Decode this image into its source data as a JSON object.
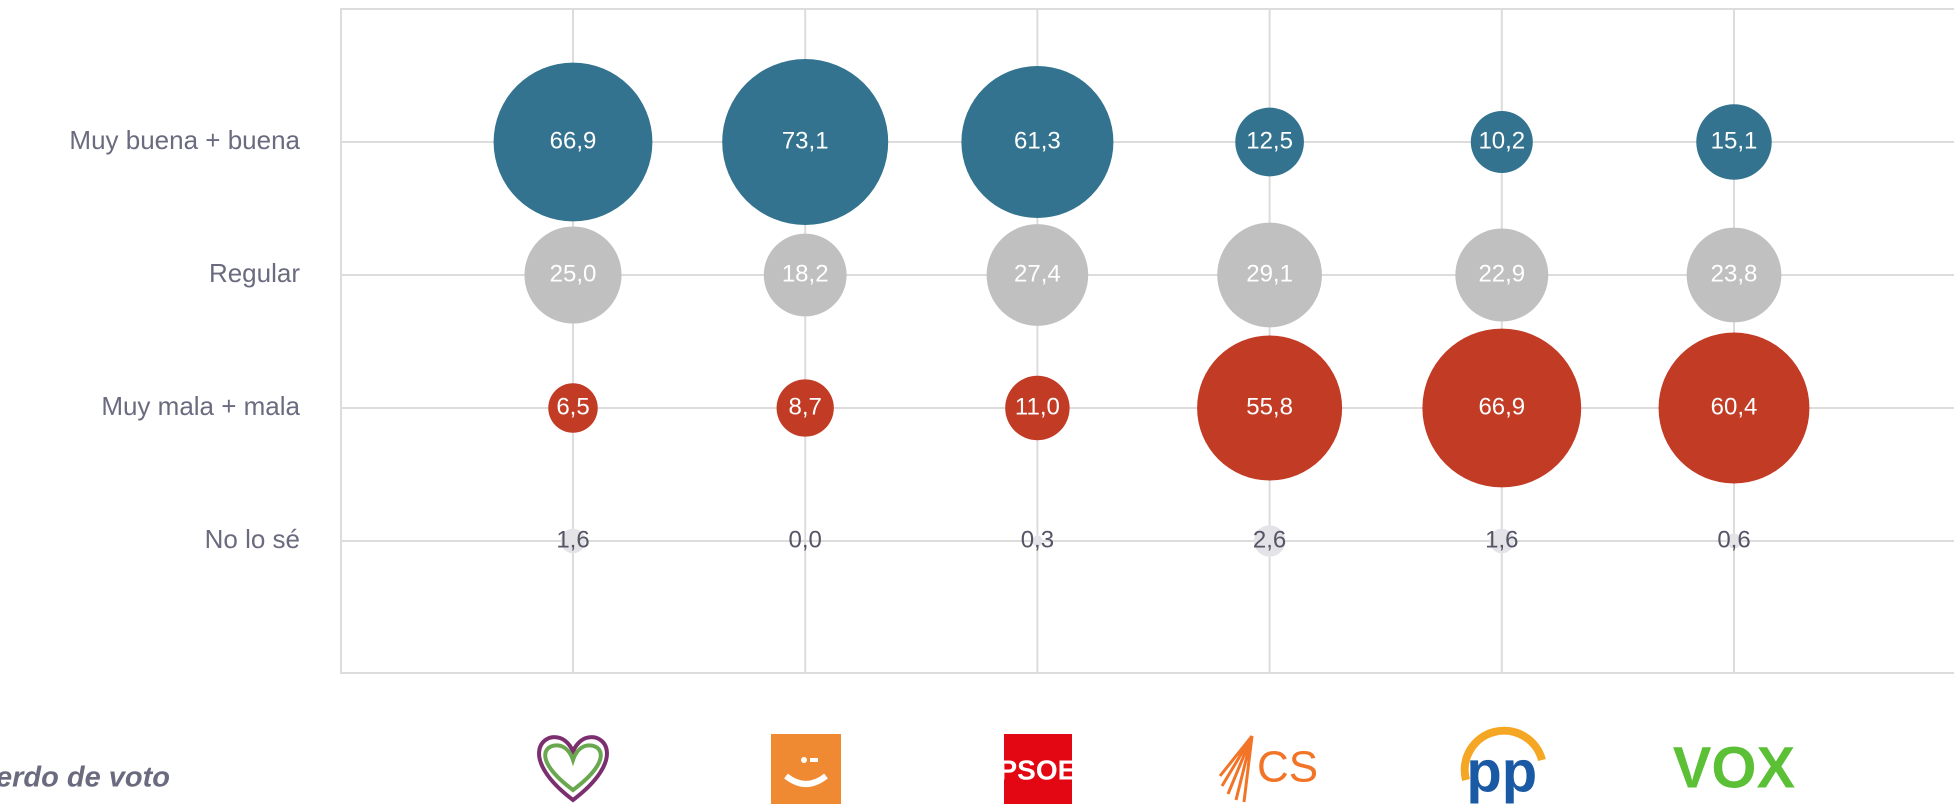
{
  "chart_data": {
    "type": "bubble",
    "xlabel": "erdo de voto",
    "categories": [
      null,
      null,
      "PSOE",
      "CS",
      "pp",
      "VOX"
    ],
    "series": [
      {
        "name": "Muy buena + buena",
        "color": "#33738f",
        "values": [
          66.9,
          73.1,
          61.3,
          12.5,
          10.2,
          15.1
        ],
        "value_labels": [
          "66,9",
          "73,1",
          "61,3",
          "12,5",
          "10,2",
          "15,1"
        ]
      },
      {
        "name": "Regular",
        "color": "#c0c0c0",
        "values": [
          25.0,
          18.2,
          27.4,
          29.1,
          22.9,
          23.8
        ],
        "value_labels": [
          "25,0",
          "18,2",
          "27,4",
          "29,1",
          "22,9",
          "23,8"
        ]
      },
      {
        "name": "Muy mala + mala",
        "color": "#c23b25",
        "values": [
          6.5,
          8.7,
          11.0,
          55.8,
          66.9,
          60.4
        ],
        "value_labels": [
          "6,5",
          "8,7",
          "11,0",
          "55,8",
          "66,9",
          "60,4"
        ]
      },
      {
        "name": "No lo sé",
        "color": "#e4e4e8",
        "values": [
          1.6,
          0.0,
          0.3,
          2.6,
          1.6,
          0.6
        ],
        "value_labels": [
          "1,6",
          "0,0",
          "0,3",
          "2,6",
          "1,6",
          "0,6"
        ]
      }
    ],
    "grid": true
  }
}
